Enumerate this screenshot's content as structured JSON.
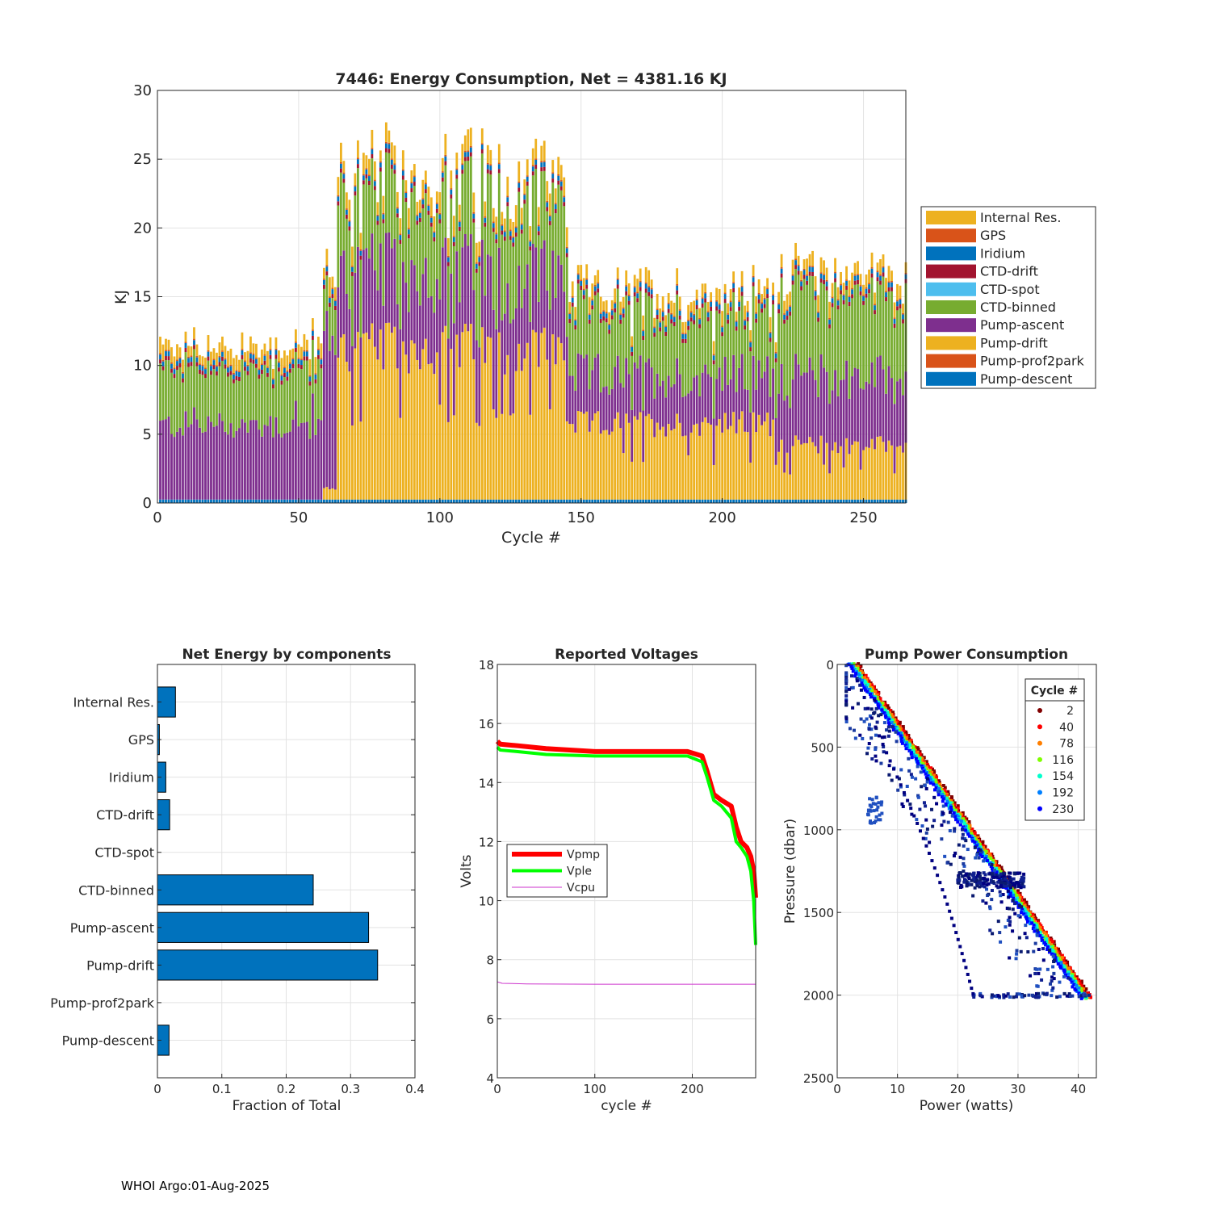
{
  "footer": "WHOI Argo:01-Aug-2025",
  "chart_data": [
    {
      "id": "energy",
      "type": "bar",
      "stacked": true,
      "title": "7446: Energy Consumption,  Net = 4381.16 KJ",
      "xlabel": "Cycle #",
      "ylabel": "KJ",
      "xlim": [
        0,
        265
      ],
      "ylim": [
        0,
        30
      ],
      "xticks": [
        0,
        50,
        100,
        150,
        200,
        250
      ],
      "yticks": [
        0,
        5,
        10,
        15,
        20,
        25,
        30
      ],
      "grid": true,
      "legend_position": "outside-right",
      "series": [
        {
          "name": "Pump-descent",
          "color": "#0072BD"
        },
        {
          "name": "Pump-prof2park",
          "color": "#D95319"
        },
        {
          "name": "Pump-drift",
          "color": "#EDB120"
        },
        {
          "name": "Pump-ascent",
          "color": "#7E2F8E"
        },
        {
          "name": "CTD-binned",
          "color": "#77AC30"
        },
        {
          "name": "CTD-spot",
          "color": "#4DBEEE"
        },
        {
          "name": "CTD-drift",
          "color": "#A2142F"
        },
        {
          "name": "Iridium",
          "color": "#0072BD"
        },
        {
          "name": "GPS",
          "color": "#D95319"
        },
        {
          "name": "Internal Res.",
          "color": "#EDB120"
        }
      ],
      "segments": [
        {
          "cycles": [
            1,
            58
          ],
          "descent": 0.25,
          "drift": 0,
          "ascent": 5.4,
          "binned": 4.0,
          "top": 1.0
        },
        {
          "cycles": [
            59,
            63
          ],
          "descent": 0.25,
          "drift": 0.8,
          "ascent": 11.0,
          "binned": 3.0,
          "top": 1.2
        },
        {
          "cycles": [
            64,
            145
          ],
          "descent": 0.25,
          "drift": 11.0,
          "ascent": 5.5,
          "binned": 5.5,
          "top": 1.3
        },
        {
          "cycles": [
            146,
            219
          ],
          "descent": 0.25,
          "drift": 5.5,
          "ascent": 3.5,
          "binned": 4.5,
          "top": 1.0
        },
        {
          "cycles": [
            220,
            265
          ],
          "descent": 0.25,
          "drift": 4.0,
          "ascent": 5.0,
          "binned": 6.0,
          "top": 1.0
        }
      ]
    },
    {
      "id": "components",
      "type": "bar",
      "orientation": "horizontal",
      "title": "Net Energy by components",
      "xlabel": "Fraction of Total",
      "xlim": [
        0,
        0.4
      ],
      "xticks": [
        0,
        0.1,
        0.2,
        0.3,
        0.4
      ],
      "tick_labels": [
        "0",
        "0.1",
        "0.2",
        "0.3",
        "0.4"
      ],
      "categories": [
        "Internal Res.",
        "GPS",
        "Iridium",
        "CTD-drift",
        "CTD-spot",
        "CTD-binned",
        "Pump-ascent",
        "Pump-drift",
        "Pump-prof2park",
        "Pump-descent"
      ],
      "values": [
        0.028,
        0.003,
        0.013,
        0.019,
        0.0,
        0.242,
        0.328,
        0.342,
        0.0,
        0.018
      ],
      "color": "#0072BD"
    },
    {
      "id": "voltages",
      "type": "line",
      "title": "Reported Voltages",
      "xlabel": "cycle #",
      "ylabel": "Volts",
      "xlim": [
        0,
        265
      ],
      "ylim": [
        4,
        18
      ],
      "xticks": [
        0,
        100,
        200
      ],
      "yticks": [
        4,
        6,
        8,
        10,
        12,
        14,
        16,
        18
      ],
      "legend_position": "middle-left",
      "series": [
        {
          "name": "Vpmp",
          "color": "#FF0000",
          "x": [
            0,
            3,
            20,
            50,
            100,
            150,
            195,
            210,
            215,
            222,
            230,
            240,
            245,
            250,
            256,
            260,
            263,
            265
          ],
          "y": [
            15.4,
            15.3,
            15.25,
            15.15,
            15.05,
            15.05,
            15.05,
            14.9,
            14.4,
            13.6,
            13.4,
            13.2,
            12.5,
            12.0,
            11.8,
            11.5,
            11.0,
            10.1
          ]
        },
        {
          "name": "Vple",
          "color": "#00FF00",
          "x": [
            0,
            3,
            20,
            50,
            100,
            150,
            195,
            210,
            215,
            222,
            230,
            240,
            245,
            250,
            256,
            260,
            263,
            265
          ],
          "y": [
            15.2,
            15.1,
            15.05,
            14.95,
            14.9,
            14.9,
            14.9,
            14.7,
            14.2,
            13.4,
            13.2,
            12.8,
            12.0,
            11.8,
            11.5,
            11.0,
            10.0,
            8.5
          ]
        },
        {
          "name": "Vcpu",
          "color": "#CC33CC",
          "x": [
            0,
            5,
            30,
            100,
            200,
            265
          ],
          "y": [
            7.25,
            7.2,
            7.18,
            7.17,
            7.17,
            7.17
          ]
        }
      ]
    },
    {
      "id": "pump",
      "type": "scatter",
      "title": "Pump Power Consumption",
      "xlabel": "Power (watts)",
      "ylabel": "Pressure (dbar)",
      "xlim": [
        0,
        43
      ],
      "ylim": [
        0,
        2500
      ],
      "y_reversed": true,
      "xticks": [
        0,
        10,
        20,
        30,
        40
      ],
      "yticks": [
        0,
        500,
        1000,
        1500,
        2000,
        2500
      ],
      "legend_title": "Cycle #",
      "legend_position": "top-right",
      "legend": [
        {
          "label": "2",
          "color": "#800000"
        },
        {
          "label": "40",
          "color": "#FF0000"
        },
        {
          "label": "78",
          "color": "#FF7F00"
        },
        {
          "label": "116",
          "color": "#7FFF00"
        },
        {
          "label": "154",
          "color": "#00FFCC"
        },
        {
          "label": "192",
          "color": "#0080FF"
        },
        {
          "label": "230",
          "color": "#0000FF"
        }
      ]
    }
  ]
}
